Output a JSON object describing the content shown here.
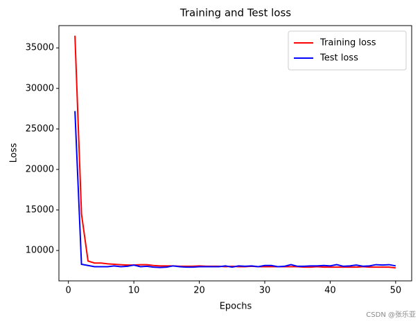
{
  "chart_data": {
    "type": "line",
    "title": "Training and Test loss",
    "x_label": "Epochs",
    "y_label": "Loss",
    "x": [
      1,
      2,
      3,
      4,
      5,
      6,
      7,
      8,
      9,
      10,
      11,
      12,
      13,
      14,
      15,
      16,
      17,
      18,
      19,
      20,
      21,
      22,
      23,
      24,
      25,
      26,
      27,
      28,
      29,
      30,
      31,
      32,
      33,
      34,
      35,
      36,
      37,
      38,
      39,
      40,
      41,
      42,
      43,
      44,
      45,
      46,
      47,
      48,
      49,
      50
    ],
    "series": [
      {
        "name": "Training loss",
        "color": "#ff0000",
        "values": [
          36500,
          14500,
          8700,
          8450,
          8450,
          8350,
          8300,
          8250,
          8200,
          8200,
          8250,
          8250,
          8150,
          8100,
          8100,
          8100,
          8050,
          8050,
          8050,
          8100,
          8050,
          8050,
          8050,
          8000,
          8050,
          8000,
          8000,
          8050,
          8000,
          8000,
          8000,
          8000,
          8000,
          8000,
          8000,
          7950,
          7950,
          8000,
          7950,
          7950,
          7950,
          7950,
          7950,
          7950,
          8000,
          7950,
          7950,
          7950,
          7950,
          7850
        ]
      },
      {
        "name": "Test loss",
        "color": "#0000ff",
        "values": [
          27200,
          8300,
          8150,
          8000,
          8000,
          8000,
          8100,
          8000,
          8050,
          8200,
          8000,
          8050,
          7950,
          7900,
          7950,
          8100,
          8000,
          7950,
          7950,
          8000,
          8000,
          8000,
          8000,
          8100,
          7950,
          8100,
          8050,
          8100,
          8000,
          8150,
          8150,
          8000,
          8050,
          8250,
          8050,
          8050,
          8100,
          8100,
          8150,
          8100,
          8250,
          8050,
          8100,
          8200,
          8050,
          8100,
          8250,
          8200,
          8250,
          8100
        ]
      }
    ],
    "xlim": [
      -1.45,
      52.45
    ],
    "ylim": [
      6250,
      37750
    ],
    "xticks": [
      0,
      10,
      20,
      30,
      40,
      50
    ],
    "yticks": [
      10000,
      15000,
      20000,
      25000,
      30000,
      35000
    ],
    "legend": "upper right",
    "grid": false,
    "watermark": "CSDN @张乐亚"
  }
}
